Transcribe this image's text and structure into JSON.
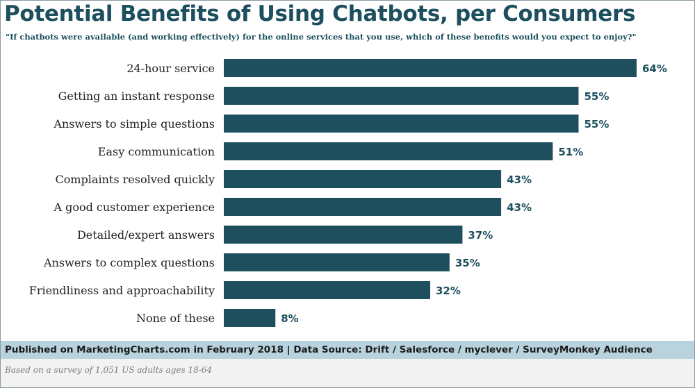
{
  "title": "Potential Benefits of Using Chatbots, per Consumers",
  "subtitle": "\"If chatbots were available (and working effectively) for the online services that you use, which of these benefits would you expect to enjoy?\"",
  "footer": "Published on MarketingCharts.com in February 2018 | Data Source: Drift / Salesforce / myclever / SurveyMonkey Audience",
  "note": "Based on a survey of 1,051 US adults ages 18-64",
  "colors": {
    "bar": "#1d4f5e",
    "title": "#1d4f5e",
    "footer_bg": "#b9d3de"
  },
  "chart_data": {
    "type": "bar",
    "orientation": "horizontal",
    "categories": [
      "24-hour service",
      "Getting an instant response",
      "Answers to simple questions",
      "Easy communication",
      "Complaints resolved quickly",
      "A good customer experience",
      "Detailed/expert answers",
      "Answers to complex questions",
      "Friendliness and approachability",
      "None of these"
    ],
    "values": [
      64,
      55,
      55,
      51,
      43,
      43,
      37,
      35,
      32,
      8
    ],
    "value_suffix": "%",
    "grid": false
  }
}
